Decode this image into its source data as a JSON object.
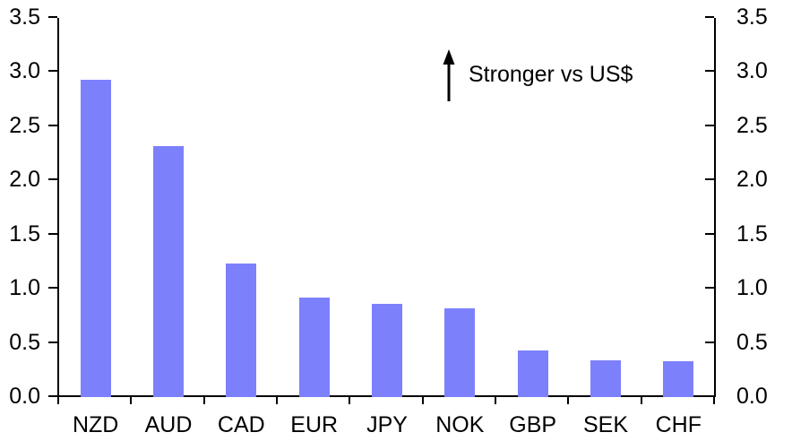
{
  "chart_data": {
    "type": "bar",
    "categories": [
      "NZD",
      "AUD",
      "CAD",
      "EUR",
      "JPY",
      "NOK",
      "GBP",
      "SEK",
      "CHF"
    ],
    "values": [
      2.93,
      2.32,
      1.23,
      0.92,
      0.86,
      0.82,
      0.43,
      0.34,
      0.33
    ],
    "title": "",
    "xlabel": "",
    "ylabel": "",
    "ylim": [
      0,
      3.5
    ],
    "ytick_step": 0.5,
    "yticks": [
      "0.0",
      "0.5",
      "1.0",
      "1.5",
      "2.0",
      "2.5",
      "3.0",
      "3.5"
    ],
    "dual_y_axis": true,
    "grid": false,
    "legend": "none",
    "bar_color": "#7d80fb",
    "axis_color": "#000000",
    "text_color": "#000000",
    "annotation": {
      "icon": "up-arrow",
      "text": "Stronger vs US$"
    }
  }
}
